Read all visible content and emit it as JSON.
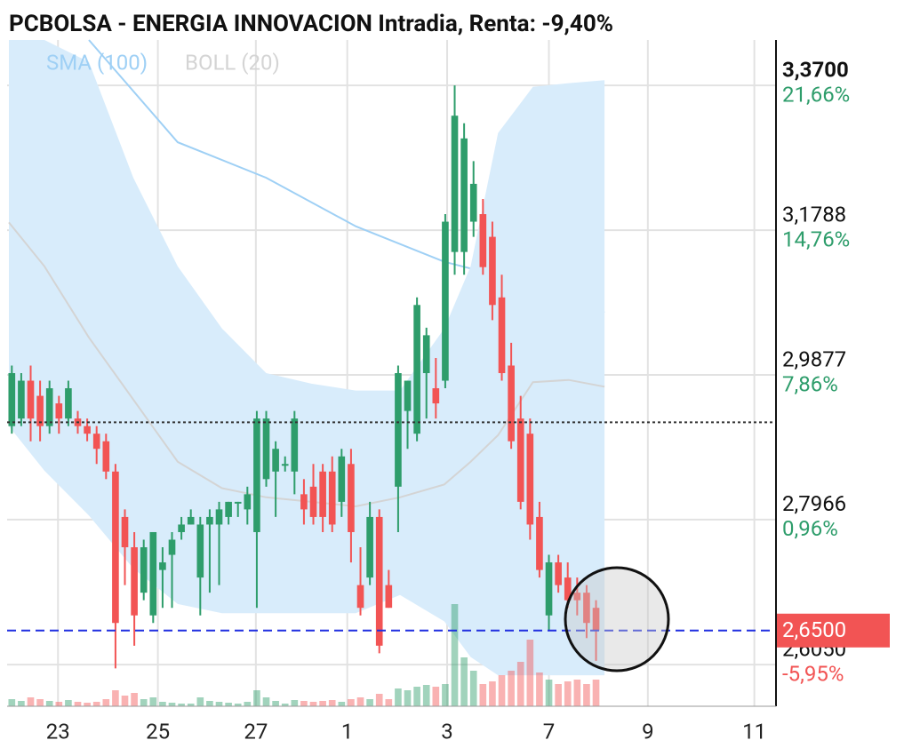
{
  "chart_data": {
    "type": "candlestick",
    "title": "PCBOLSA - ENERGIA INNOVACION Intradia, Renta: -9,40%",
    "xlim": [
      -0.5,
      81.1
    ],
    "xticks": [
      {
        "value": 4.9,
        "label": "23"
      },
      {
        "value": 15.5,
        "label": "25"
      },
      {
        "value": 25.9,
        "label": "27"
      },
      {
        "value": 35.6,
        "label": "1"
      },
      {
        "value": 46.2,
        "label": "3"
      },
      {
        "value": 57,
        "label": "7"
      },
      {
        "value": 67.5,
        "label": "9"
      },
      {
        "value": 78.8,
        "label": "11"
      }
    ],
    "ylim": [
      2.55,
      3.43
    ],
    "yticks": [
      {
        "value": 3.37,
        "label": "3,3700"
      },
      {
        "value": 3.1788,
        "label": "3,1788"
      },
      {
        "value": 2.9877,
        "label": "2,9877"
      },
      {
        "value": 2.7966,
        "label": "2,7966"
      },
      {
        "value": 2.605,
        "label": "2,6050"
      }
    ],
    "ytick_changes": [
      {
        "value": 21.66,
        "label": "21,66%"
      },
      {
        "value": 14.76,
        "label": "14,76%"
      },
      {
        "value": 7.86,
        "label": "7,86%"
      },
      {
        "value": 0.96,
        "label": "0,96%"
      },
      {
        "value": -5.95,
        "label": "-5,95%"
      }
    ],
    "grid": true,
    "up_color": "#2e9d6b",
    "down_color": "#f25454",
    "open": [
      2.92,
      2.93,
      2.98,
      2.96,
      2.92,
      2.95,
      2.93,
      2.93,
      2.92,
      2.91,
      2.9,
      2.86,
      2.8,
      2.76,
      2.7,
      2.67,
      2.73,
      2.75,
      2.78,
      2.79,
      2.72,
      2.79,
      2.79,
      2.8,
      2.82,
      2.81,
      2.78,
      2.85,
      2.86,
      2.87,
      2.86,
      2.83,
      2.84,
      2.86,
      2.86,
      2.82,
      2.87,
      2.71,
      2.72,
      2.8,
      2.71,
      2.84,
      2.94,
      2.91,
      2.99,
      2.97,
      2.98,
      3.15,
      3.15,
      3.19,
      3.2,
      3.17,
      3.09,
      3.0,
      2.93,
      2.91,
      2.8,
      2.67,
      2.74,
      2.72,
      2.7,
      2.7,
      2.68
    ],
    "high": [
      3.0,
      2.99,
      3.0,
      2.98,
      2.98,
      2.96,
      2.98,
      2.94,
      2.93,
      2.92,
      2.91,
      2.87,
      2.81,
      2.78,
      2.77,
      2.78,
      2.76,
      2.78,
      2.8,
      2.81,
      2.8,
      2.81,
      2.82,
      2.82,
      2.82,
      2.84,
      2.94,
      2.94,
      2.9,
      2.88,
      2.94,
      2.85,
      2.87,
      2.87,
      2.88,
      2.89,
      2.89,
      2.76,
      2.82,
      2.81,
      2.73,
      3.0,
      2.98,
      3.09,
      3.05,
      3.01,
      3.2,
      3.37,
      3.32,
      3.27,
      3.22,
      3.19,
      3.12,
      3.03,
      2.96,
      2.93,
      2.82,
      2.75,
      2.75,
      2.74,
      2.72,
      2.71,
      2.69
    ],
    "low": [
      2.91,
      2.92,
      2.9,
      2.9,
      2.91,
      2.91,
      2.92,
      2.91,
      2.9,
      2.87,
      2.85,
      2.6,
      2.71,
      2.63,
      2.69,
      2.66,
      2.68,
      2.68,
      2.77,
      2.79,
      2.67,
      2.7,
      2.71,
      2.79,
      2.8,
      2.79,
      2.68,
      2.84,
      2.8,
      2.86,
      2.83,
      2.79,
      2.79,
      2.78,
      2.78,
      2.8,
      2.74,
      2.67,
      2.71,
      2.62,
      2.68,
      2.78,
      2.89,
      2.9,
      2.93,
      2.93,
      2.97,
      3.12,
      3.12,
      3.17,
      3.12,
      3.06,
      2.98,
      2.89,
      2.81,
      2.77,
      2.72,
      2.65,
      2.7,
      2.68,
      2.67,
      2.64,
      2.61
    ],
    "close": [
      2.99,
      2.98,
      2.93,
      2.92,
      2.97,
      2.93,
      2.97,
      2.92,
      2.91,
      2.89,
      2.86,
      2.66,
      2.76,
      2.67,
      2.76,
      2.78,
      2.74,
      2.77,
      2.79,
      2.8,
      2.79,
      2.8,
      2.81,
      2.82,
      2.82,
      2.83,
      2.93,
      2.93,
      2.89,
      2.87,
      2.93,
      2.81,
      2.8,
      2.8,
      2.79,
      2.88,
      2.78,
      2.68,
      2.8,
      2.63,
      2.68,
      2.99,
      2.98,
      3.08,
      3.04,
      2.95,
      3.19,
      3.33,
      3.3,
      3.24,
      3.13,
      3.08,
      2.99,
      2.9,
      2.82,
      2.79,
      2.73,
      2.74,
      2.71,
      2.69,
      2.69,
      2.66,
      2.65
    ],
    "volumes": [
      8,
      6,
      10,
      8,
      6,
      5,
      7,
      5,
      4,
      5,
      8,
      18,
      12,
      15,
      8,
      10,
      5,
      4,
      3,
      3,
      10,
      6,
      5,
      4,
      3,
      5,
      18,
      10,
      6,
      3,
      7,
      6,
      5,
      6,
      7,
      5,
      8,
      10,
      8,
      14,
      8,
      20,
      18,
      22,
      24,
      22,
      25,
      115,
      55,
      40,
      25,
      28,
      35,
      40,
      50,
      75,
      38,
      30,
      25,
      28,
      30,
      25,
      30
    ],
    "volume_ylim": [
      0,
      130
    ],
    "reference_price": 2.925,
    "last_price": {
      "value": 2.65,
      "label": "2,6500"
    },
    "indicators": [
      {
        "name": "SMA (100)",
        "color": "#9fd0f5",
        "x": [
          8.18,
          17.6,
          27.0,
          36.5,
          45.9,
          51.6,
          55.3,
          62.9
        ],
        "values": [
          3.43,
          3.295,
          3.248,
          3.184,
          3.137,
          3.119,
          3.107,
          3.07
        ]
      },
      {
        "name": "BOLL (20)",
        "color": "#d4d4d4",
        "band_color": "#d8ecfb",
        "x": [
          -0.31,
          3.46,
          8.18,
          12.9,
          17.6,
          22.3,
          27.0,
          31.8,
          36.5,
          41.2,
          45.9,
          48.7,
          51.6,
          55.3,
          59.1,
          62.9
        ],
        "upper": [
          3.43,
          3.43,
          3.401,
          3.248,
          3.131,
          3.049,
          2.99,
          2.976,
          2.967,
          2.967,
          3.049,
          3.131,
          3.307,
          3.368,
          3.373,
          3.377
        ],
        "middle": [
          3.189,
          3.131,
          3.037,
          2.955,
          2.873,
          2.838,
          2.826,
          2.82,
          2.814,
          2.826,
          2.843,
          2.873,
          2.908,
          2.978,
          2.981,
          2.972
        ],
        "lower": [
          2.92,
          2.861,
          2.802,
          2.732,
          2.685,
          2.673,
          2.673,
          2.673,
          2.673,
          2.697,
          2.662,
          2.615,
          2.591,
          2.591,
          2.591,
          2.591
        ]
      }
    ]
  }
}
